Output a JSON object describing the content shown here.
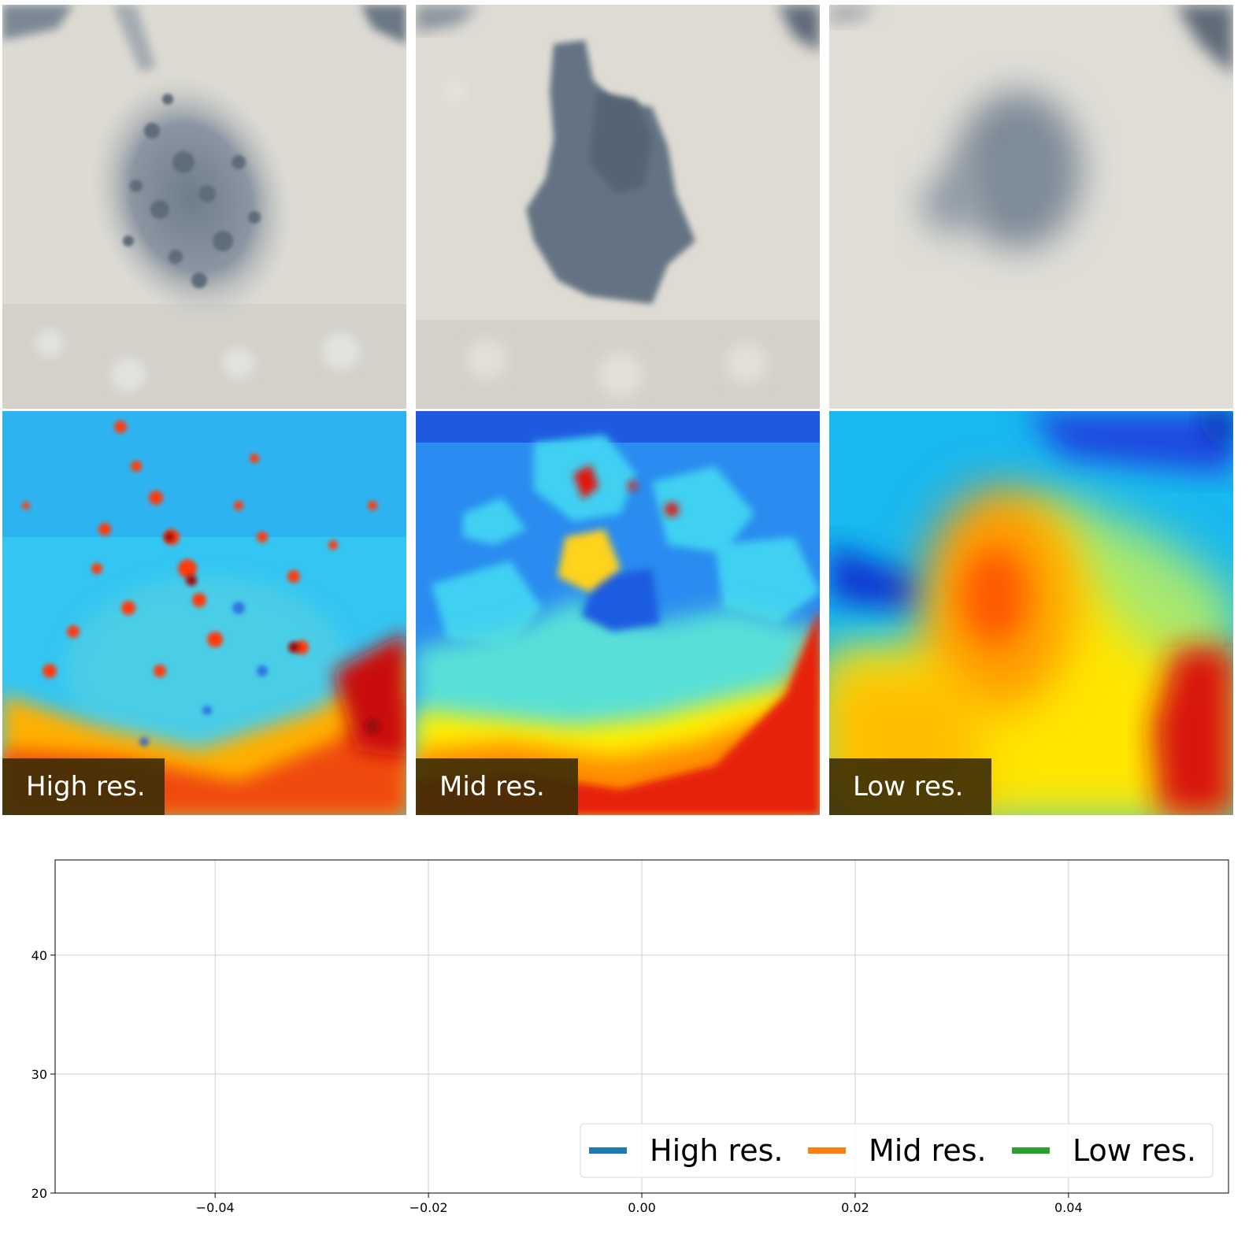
{
  "figure": {
    "panels": [
      {
        "label": "High res.",
        "rgb_icon": "rgb-image",
        "depth_icon": "depth-map"
      },
      {
        "label": "Mid res.",
        "rgb_icon": "rgb-image",
        "depth_icon": "depth-map"
      },
      {
        "label": "Low res.",
        "rgb_icon": "rgb-image",
        "depth_icon": "depth-map"
      }
    ],
    "colormap": "jet",
    "label_background": "#3c2d05"
  },
  "chart_data": {
    "type": "line",
    "title": "",
    "xlabel": "",
    "ylabel": "",
    "xlim": [
      -0.055,
      0.055
    ],
    "ylim": [
      20,
      48
    ],
    "x_ticks": [
      -0.04,
      -0.02,
      0.0,
      0.02,
      0.04
    ],
    "x_tick_labels": [
      "−0.04",
      "−0.02",
      "0.00",
      "0.02",
      "0.04"
    ],
    "y_ticks": [
      20,
      30,
      40
    ],
    "y_tick_labels": [
      "20",
      "30",
      "40"
    ],
    "grid": true,
    "legend_position": "lower-right",
    "series": [
      {
        "name": "High res.",
        "color": "#1f77b4",
        "values": []
      },
      {
        "name": "Mid res.",
        "color": "#ff7f0e",
        "values": []
      },
      {
        "name": "Low res.",
        "color": "#2ca02c",
        "values": []
      }
    ]
  }
}
